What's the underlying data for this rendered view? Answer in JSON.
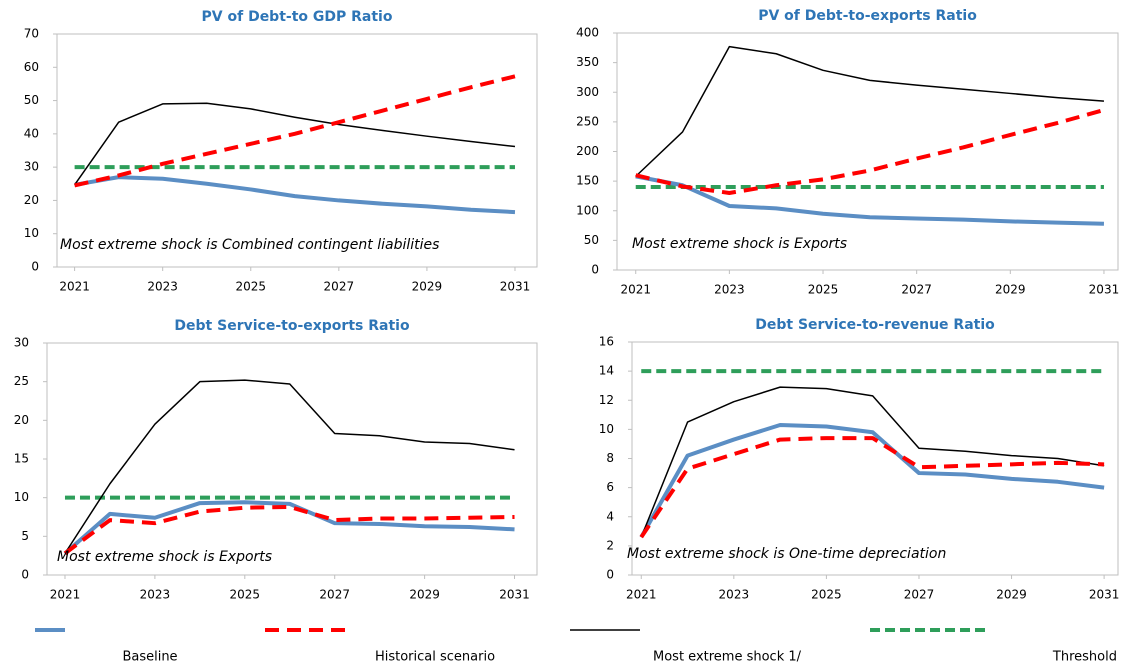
{
  "chart_data": [
    {
      "type": "line",
      "title": "PV of Debt-to GDP Ratio",
      "annotation": "Most extreme shock is Combined contingent liabilities",
      "x": [
        2021,
        2022,
        2023,
        2024,
        2025,
        2026,
        2027,
        2028,
        2029,
        2030,
        2031
      ],
      "xlim": [
        2020.6,
        2031.5
      ],
      "xticks": [
        2021,
        2023,
        2025,
        2027,
        2029,
        2031
      ],
      "ylim": [
        0,
        70
      ],
      "yticks": [
        0,
        10,
        20,
        30,
        40,
        50,
        60,
        70
      ],
      "series": [
        {
          "name": "Baseline",
          "color": "#5b8ec4",
          "linestyle": "solid",
          "linewidth": 4,
          "values": [
            24.7,
            27,
            26.5,
            25,
            23.3,
            21.3,
            20,
            19,
            18.2,
            17.2,
            16.5
          ]
        },
        {
          "name": "Historical scenario",
          "color": "#ff0000",
          "linestyle": "dashed",
          "linewidth": 4,
          "values": [
            24.5,
            27.5,
            31,
            34,
            37,
            40,
            43.5,
            47,
            50.5,
            54,
            57.3
          ]
        },
        {
          "name": "Most extreme shock 1/",
          "color": "#000000",
          "linestyle": "solid",
          "linewidth": 1.5,
          "values": [
            24.7,
            43.5,
            49,
            49.2,
            47.5,
            45,
            42.8,
            41,
            39.3,
            37.7,
            36.2
          ]
        },
        {
          "name": "Threshold",
          "color": "#2e9e5a",
          "linestyle": "dashed",
          "linewidth": 4,
          "values": [
            30,
            30,
            30,
            30,
            30,
            30,
            30,
            30,
            30,
            30,
            30
          ]
        }
      ]
    },
    {
      "type": "line",
      "title": "PV of Debt-to-exports Ratio",
      "annotation": "Most extreme shock is Exports",
      "x": [
        2021,
        2022,
        2023,
        2024,
        2025,
        2026,
        2027,
        2028,
        2029,
        2030,
        2031
      ],
      "xlim": [
        2020.6,
        2031.3
      ],
      "xticks": [
        2021,
        2023,
        2025,
        2027,
        2029,
        2031
      ],
      "ylim": [
        0,
        400
      ],
      "yticks": [
        0,
        50,
        100,
        150,
        200,
        250,
        300,
        350,
        400
      ],
      "series": [
        {
          "name": "Baseline",
          "color": "#5b8ec4",
          "linestyle": "solid",
          "linewidth": 4,
          "values": [
            158,
            143,
            108,
            104,
            95,
            89,
            87,
            85,
            82,
            80,
            78
          ]
        },
        {
          "name": "Historical scenario",
          "color": "#ff0000",
          "linestyle": "dashed",
          "linewidth": 4,
          "values": [
            160,
            141,
            130,
            143,
            153,
            168,
            188,
            207,
            228,
            248,
            270
          ]
        },
        {
          "name": "Most extreme shock 1/",
          "color": "#000000",
          "linestyle": "solid",
          "linewidth": 1.5,
          "values": [
            158,
            233,
            377,
            365,
            337,
            320,
            312,
            305,
            298,
            291,
            285
          ]
        },
        {
          "name": "Threshold",
          "color": "#2e9e5a",
          "linestyle": "dashed",
          "linewidth": 4,
          "values": [
            140,
            140,
            140,
            140,
            140,
            140,
            140,
            140,
            140,
            140,
            140
          ]
        }
      ]
    },
    {
      "type": "line",
      "title": "Debt Service-to-exports Ratio",
      "annotation": "Most extreme shock is Exports",
      "x": [
        2021,
        2022,
        2023,
        2024,
        2025,
        2026,
        2027,
        2028,
        2029,
        2030,
        2031
      ],
      "xlim": [
        2020.6,
        2031.5
      ],
      "xticks": [
        2021,
        2023,
        2025,
        2027,
        2029,
        2031
      ],
      "ylim": [
        0,
        30
      ],
      "yticks": [
        0,
        5,
        10,
        15,
        20,
        25,
        30
      ],
      "series": [
        {
          "name": "Baseline",
          "color": "#5b8ec4",
          "linestyle": "solid",
          "linewidth": 4,
          "values": [
            2.8,
            7.9,
            7.4,
            9.3,
            9.4,
            9.2,
            6.7,
            6.6,
            6.3,
            6.2,
            5.9
          ]
        },
        {
          "name": "Historical scenario",
          "color": "#ff0000",
          "linestyle": "dashed",
          "linewidth": 4,
          "values": [
            2.8,
            7.1,
            6.7,
            8.2,
            8.7,
            8.8,
            7.1,
            7.3,
            7.3,
            7.4,
            7.5
          ]
        },
        {
          "name": "Most extreme shock 1/",
          "color": "#000000",
          "linestyle": "solid",
          "linewidth": 1.5,
          "values": [
            2.8,
            11.8,
            19.5,
            25,
            25.2,
            24.7,
            18.3,
            18,
            17.2,
            17,
            16.2
          ]
        },
        {
          "name": "Threshold",
          "color": "#2e9e5a",
          "linestyle": "dashed",
          "linewidth": 4,
          "values": [
            10,
            10,
            10,
            10,
            10,
            10,
            10,
            10,
            10,
            10,
            10
          ]
        }
      ]
    },
    {
      "type": "line",
      "title": "Debt Service-to-revenue Ratio",
      "annotation": "Most extreme shock is One-time depreciation",
      "x": [
        2021,
        2022,
        2023,
        2024,
        2025,
        2026,
        2027,
        2028,
        2029,
        2030,
        2031
      ],
      "xlim": [
        2020.8,
        2031.3
      ],
      "xticks": [
        2021,
        2023,
        2025,
        2027,
        2029,
        2031
      ],
      "ylim": [
        0,
        16
      ],
      "yticks": [
        0,
        2,
        4,
        6,
        8,
        10,
        12,
        14,
        16
      ],
      "series": [
        {
          "name": "Baseline",
          "color": "#5b8ec4",
          "linestyle": "solid",
          "linewidth": 4,
          "values": [
            2.6,
            8.2,
            9.3,
            10.3,
            10.2,
            9.8,
            7.0,
            6.9,
            6.6,
            6.4,
            6.0
          ]
        },
        {
          "name": "Historical scenario",
          "color": "#ff0000",
          "linestyle": "dashed",
          "linewidth": 4,
          "values": [
            2.6,
            7.3,
            8.3,
            9.3,
            9.4,
            9.4,
            7.4,
            7.5,
            7.6,
            7.7,
            7.6
          ]
        },
        {
          "name": "Most extreme shock 1/",
          "color": "#000000",
          "linestyle": "solid",
          "linewidth": 1.5,
          "values": [
            2.6,
            10.5,
            11.9,
            12.9,
            12.8,
            12.3,
            8.7,
            8.5,
            8.2,
            8.0,
            7.5
          ]
        },
        {
          "name": "Threshold",
          "color": "#2e9e5a",
          "linestyle": "dashed",
          "linewidth": 4,
          "values": [
            14,
            14,
            14,
            14,
            14,
            14,
            14,
            14,
            14,
            14,
            14
          ]
        }
      ]
    }
  ]
}
